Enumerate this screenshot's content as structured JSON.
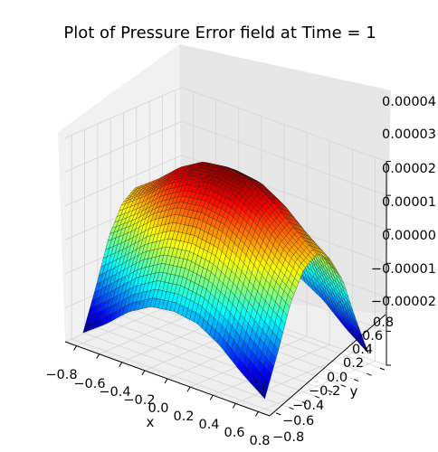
{
  "chart_data": {
    "type": "surface",
    "title": "Plot of Pressure Error field at Time = 1",
    "xlabel": "x",
    "ylabel": "y",
    "zlabel": "",
    "colormap": "jet",
    "x_ticks": [
      "−0.8",
      "−0.6",
      "−0.4",
      "−0.2",
      "0.0",
      "0.2",
      "0.4",
      "0.6",
      "0.8"
    ],
    "y_ticks": [
      "−0.8",
      "−0.6",
      "−0.4",
      "−0.2",
      "0.0",
      "0.2",
      "0.4",
      "0.6",
      "0.8"
    ],
    "z_ticks": [
      "−0.00002",
      "−0.00001",
      "0.00000",
      "0.00001",
      "0.00002",
      "0.00003",
      "0.00004"
    ],
    "xlim": [
      -0.9,
      0.9
    ],
    "ylim": [
      -0.9,
      0.9
    ],
    "zlim": [
      -2e-05,
      4e-05
    ],
    "grid": true,
    "surface_samples": {
      "x": [
        -0.8,
        -0.6,
        -0.4,
        -0.2,
        0.0,
        0.2,
        0.4,
        0.6,
        0.8
      ],
      "y": [
        -0.8,
        -0.6,
        -0.4,
        -0.2,
        0.0,
        0.2,
        0.4,
        0.6,
        0.8
      ],
      "z": [
        [
          -1.7e-05,
          -5e-06,
          8e-06,
          1.6e-05,
          1.9e-05,
          1.6e-05,
          8e-06,
          -5e-06,
          -1.7e-05
        ],
        [
          -1.2e-05,
          1e-06,
          1.3e-05,
          2.1e-05,
          2.4e-05,
          2.1e-05,
          1.3e-05,
          1e-06,
          -1.2e-05
        ],
        [
          -6e-06,
          7e-06,
          1.9e-05,
          2.7e-05,
          3e-05,
          2.7e-05,
          1.9e-05,
          7e-06,
          -6e-06
        ],
        [
          -2e-06,
          1.1e-05,
          2.3e-05,
          3.1e-05,
          3.4e-05,
          3.1e-05,
          2.3e-05,
          1.1e-05,
          -2e-06
        ],
        [
          -1e-06,
          1.2e-05,
          2.4e-05,
          3.2e-05,
          3.5e-05,
          3.2e-05,
          2.4e-05,
          1.2e-05,
          -1e-06
        ],
        [
          -2e-06,
          1.1e-05,
          2.3e-05,
          3.1e-05,
          3.4e-05,
          3.1e-05,
          2.3e-05,
          1.1e-05,
          -2e-06
        ],
        [
          -6e-06,
          7e-06,
          1.9e-05,
          2.7e-05,
          3e-05,
          2.7e-05,
          1.9e-05,
          7e-06,
          -6e-06
        ],
        [
          -1.2e-05,
          1e-06,
          1.3e-05,
          2.1e-05,
          2.4e-05,
          2.1e-05,
          1.3e-05,
          1e-06,
          -1.2e-05
        ],
        [
          -1.7e-05,
          -5e-06,
          8e-06,
          1.6e-05,
          1.9e-05,
          1.6e-05,
          8e-06,
          -5e-06,
          -1.7e-05
        ]
      ]
    }
  }
}
